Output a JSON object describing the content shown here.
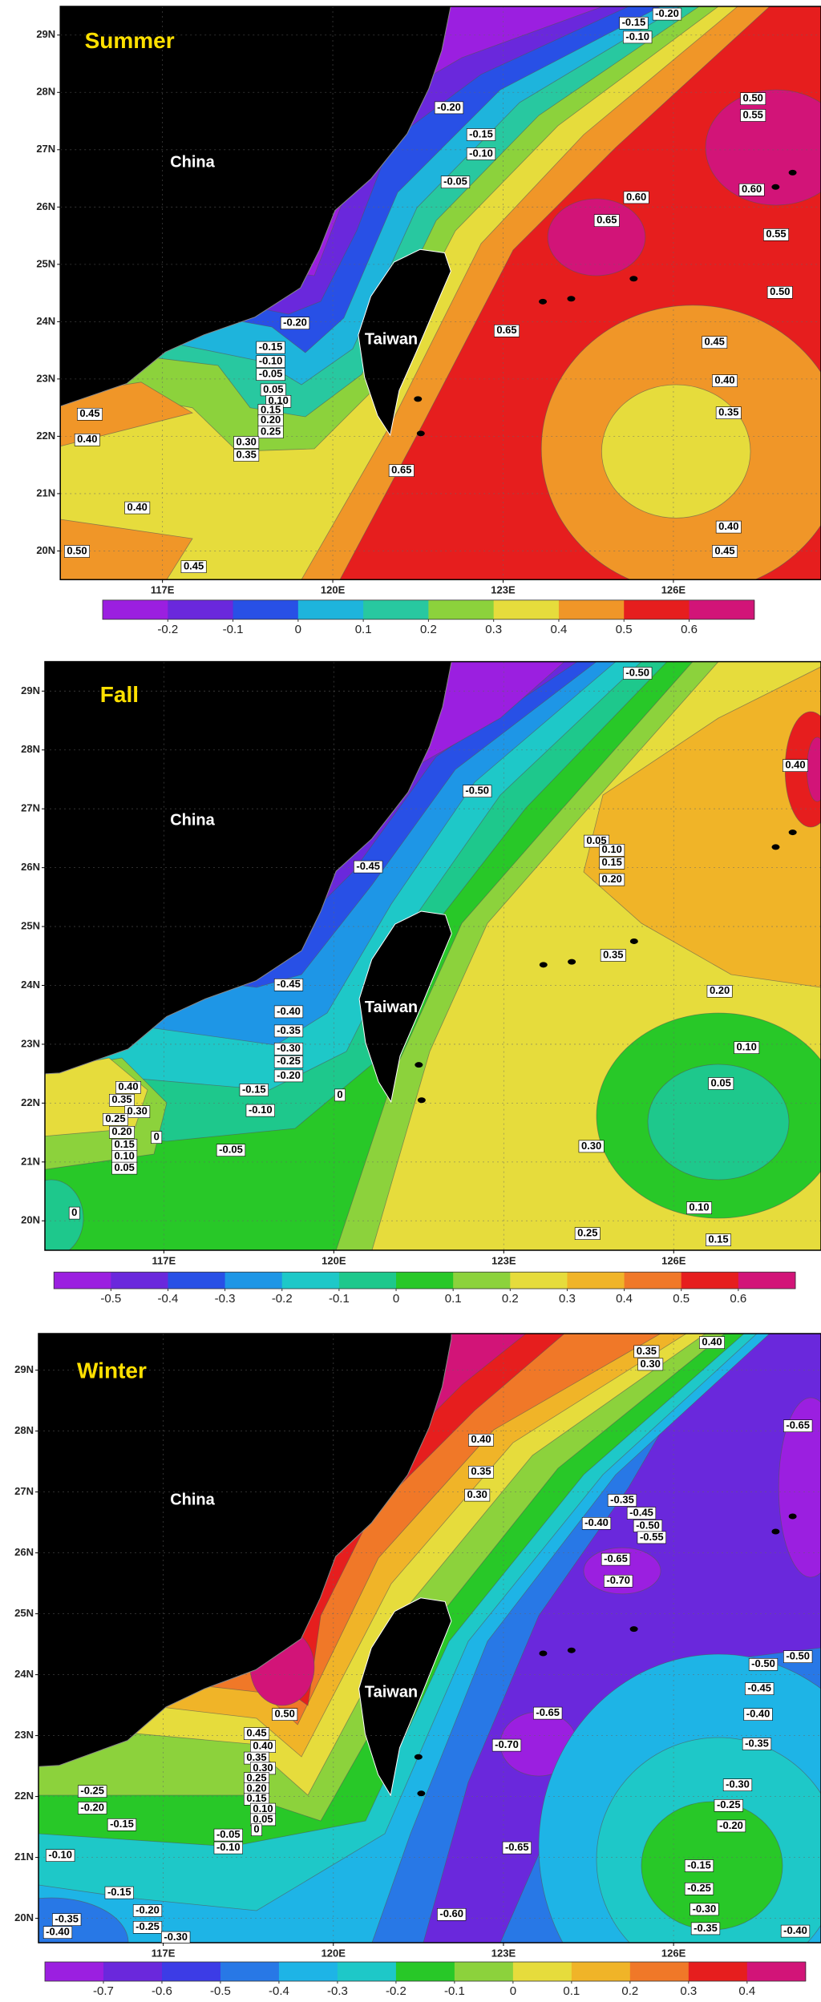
{
  "panels": [
    {
      "title": "Summer",
      "land_labels": [
        "China",
        "Taiwan"
      ],
      "lonlim": [
        115.2,
        128.6
      ],
      "latlim": [
        19.5,
        29.5
      ],
      "lonticks": [
        {
          "value": 117,
          "label": "117E"
        },
        {
          "value": 120,
          "label": "120E"
        },
        {
          "value": 123,
          "label": "123E"
        },
        {
          "value": 126,
          "label": "126E"
        }
      ],
      "latticks": [
        {
          "value": 20,
          "label": "20N"
        },
        {
          "value": 21,
          "label": "21N"
        },
        {
          "value": 22,
          "label": "22N"
        },
        {
          "value": 23,
          "label": "23N"
        },
        {
          "value": 24,
          "label": "24N"
        },
        {
          "value": 25,
          "label": "25N"
        },
        {
          "value": 26,
          "label": "26N"
        },
        {
          "value": 27,
          "label": "27N"
        },
        {
          "value": 28,
          "label": "28N"
        },
        {
          "value": 29,
          "label": "29N"
        }
      ],
      "contour_labels": [
        "-0.20",
        "-0.15",
        "-0.10",
        "-0.05",
        "-0.15",
        "-0.20",
        "-0.10",
        "0.50",
        "0.55",
        "0.60",
        "0.60",
        "0.65",
        "0.55",
        "0.50",
        "0.45",
        "0.40",
        "0.35",
        "0.40",
        "0.45",
        "0.65",
        "0.65",
        "-0.20",
        "-0.15",
        "-0.10",
        "-0.05",
        "0.05",
        "0.10",
        "0.15",
        "0.20",
        "0.25",
        "0.30",
        "0.35",
        "0.45",
        "0.40",
        "0.40",
        "0.45",
        "0.50"
      ],
      "colorbar": {
        "range": [
          -0.3,
          0.7
        ],
        "ticks": [
          -0.2,
          -0.1,
          0,
          0.1,
          0.2,
          0.3,
          0.4,
          0.5,
          0.6
        ],
        "colors": [
          "#9b1fe0",
          "#6a28dc",
          "#2850e6",
          "#1eb4dc",
          "#28c8a0",
          "#8cd23c",
          "#e6dc3c",
          "#f09628",
          "#e61e1e",
          "#d21478"
        ]
      }
    },
    {
      "title": "Fall",
      "land_labels": [
        "China",
        "Taiwan"
      ],
      "lonlim": [
        114.9,
        128.6
      ],
      "latlim": [
        19.5,
        29.5
      ],
      "lonticks": [
        {
          "value": 117,
          "label": "117E"
        },
        {
          "value": 120,
          "label": "120E"
        },
        {
          "value": 123,
          "label": "123E"
        },
        {
          "value": 126,
          "label": "126E"
        }
      ],
      "latticks": [
        {
          "value": 20,
          "label": "20N"
        },
        {
          "value": 21,
          "label": "21N"
        },
        {
          "value": 22,
          "label": "22N"
        },
        {
          "value": 23,
          "label": "23N"
        },
        {
          "value": 24,
          "label": "24N"
        },
        {
          "value": 25,
          "label": "25N"
        },
        {
          "value": 26,
          "label": "26N"
        },
        {
          "value": 27,
          "label": "27N"
        },
        {
          "value": 28,
          "label": "28N"
        },
        {
          "value": 29,
          "label": "29N"
        }
      ],
      "contour_labels": [
        "-0.50",
        "-0.50",
        "0.40",
        "0.05",
        "0.10",
        "0.15",
        "0.20",
        "-0.45",
        "0.35",
        "0.20",
        "0.10",
        "0.05",
        "0.30",
        "0.10",
        "0.15",
        "0.25",
        "-0.45",
        "-0.40",
        "-0.35",
        "-0.30",
        "-0.25",
        "-0.20",
        "-0.15",
        "-0.10",
        "-0.05",
        "0",
        "0.40",
        "0.35",
        "0.30",
        "0.25",
        "0.20",
        "0.15",
        "0.10",
        "0.05",
        "0",
        "0"
      ],
      "colorbar": {
        "range": [
          -0.6,
          0.7
        ],
        "ticks": [
          -0.5,
          -0.4,
          -0.3,
          -0.2,
          -0.1,
          0,
          0.1,
          0.2,
          0.3,
          0.4,
          0.5,
          0.6
        ],
        "colors": [
          "#9b1fe0",
          "#6a28dc",
          "#2850e6",
          "#1e96e6",
          "#1ec8c8",
          "#1ec88c",
          "#28c828",
          "#8cd23c",
          "#e6dc3c",
          "#f0b428",
          "#f07828",
          "#e61e1e",
          "#d21478"
        ]
      }
    },
    {
      "title": "Winter",
      "land_labels": [
        "China",
        "Taiwan"
      ],
      "lonlim": [
        114.8,
        128.6
      ],
      "latlim": [
        19.6,
        29.6
      ],
      "lonticks": [
        {
          "value": 117,
          "label": "117E"
        },
        {
          "value": 120,
          "label": "120E"
        },
        {
          "value": 123,
          "label": "123E"
        },
        {
          "value": 126,
          "label": "126E"
        }
      ],
      "latticks": [
        {
          "value": 20,
          "label": "20N"
        },
        {
          "value": 21,
          "label": "21N"
        },
        {
          "value": 22,
          "label": "22N"
        },
        {
          "value": 23,
          "label": "23N"
        },
        {
          "value": 24,
          "label": "24N"
        },
        {
          "value": 25,
          "label": "25N"
        },
        {
          "value": 26,
          "label": "26N"
        },
        {
          "value": 27,
          "label": "27N"
        },
        {
          "value": 28,
          "label": "28N"
        },
        {
          "value": 29,
          "label": "29N"
        }
      ],
      "contour_labels": [
        "0.40",
        "0.35",
        "0.30",
        "-0.65",
        "0.40",
        "0.35",
        "0.30",
        "-0.35",
        "-0.45",
        "-0.40",
        "-0.50",
        "-0.55",
        "-0.65",
        "-0.70",
        "-0.50",
        "-0.50",
        "-0.45",
        "-0.40",
        "-0.35",
        "-0.30",
        "-0.25",
        "-0.20",
        "-0.15",
        "-0.25",
        "-0.30",
        "-0.35",
        "-0.40",
        "-0.65",
        "-0.70",
        "-0.65",
        "-0.60",
        "0.50",
        "0.45",
        "0.40",
        "0.35",
        "0.30",
        "0.25",
        "0.20",
        "0.15",
        "0.10",
        "0.05",
        "0",
        "-0.05",
        "-0.10",
        "-0.25",
        "-0.20",
        "-0.15",
        "-0.10",
        "-0.15",
        "-0.20",
        "-0.25",
        "-0.35",
        "-0.40",
        "-0.30"
      ],
      "colorbar": {
        "range": [
          -0.8,
          0.5
        ],
        "ticks": [
          -0.7,
          -0.6,
          -0.5,
          -0.4,
          -0.3,
          -0.2,
          -0.1,
          0,
          0.1,
          0.2,
          0.3,
          0.4
        ],
        "colors": [
          "#9b1fe0",
          "#6a28dc",
          "#3c3ce6",
          "#2878e6",
          "#1eb4e6",
          "#1ec8c8",
          "#28c828",
          "#8cd23c",
          "#e6dc3c",
          "#f0b428",
          "#f07828",
          "#e61e1e",
          "#d21478"
        ]
      }
    }
  ]
}
